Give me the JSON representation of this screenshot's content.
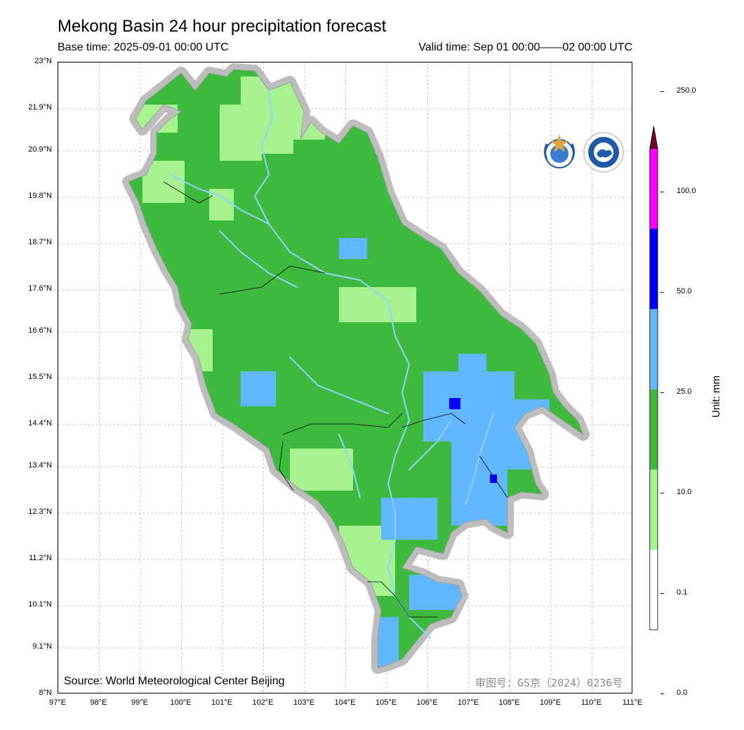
{
  "header": {
    "title": "Mekong Basin 24 hour precipitation forecast",
    "base_time": "Base time: 2025-09-01 00:00 UTC",
    "valid_time": "Valid time: Sep 01 00:00——02 00:00 UTC"
  },
  "map": {
    "lat_ticks": [
      "23°N",
      "21.9°N",
      "20.9°N",
      "19.8°N",
      "18.7°N",
      "17.6°N",
      "16.6°N",
      "15.5°N",
      "14.4°N",
      "13.4°N",
      "12.3°N",
      "11.2°N",
      "10.1°N",
      "9.1°N",
      "8°N"
    ],
    "lon_ticks": [
      "97°E",
      "98°E",
      "99°E",
      "100°E",
      "101°E",
      "102°E",
      "103°E",
      "104°E",
      "105°E",
      "106°E",
      "107°E",
      "108°E",
      "109°E",
      "110°E",
      "111°E"
    ],
    "source": "Source: World Meteorological Center Beijing",
    "approval": "审图号：GS京（2024）0236号",
    "logos": [
      "wmo-logo",
      "cma-logo"
    ]
  },
  "colorbar": {
    "levels": [
      "250.0",
      "100.0",
      "50.0",
      "25.0",
      "10.0",
      "0.1",
      "0.0"
    ],
    "colors": [
      "#ff00ff",
      "#0000ff",
      "#61b8ff",
      "#3dba3d",
      "#a6f28f",
      "#ffffff"
    ],
    "extend_color": "#6e0034",
    "unit": "Unit: mm"
  }
}
